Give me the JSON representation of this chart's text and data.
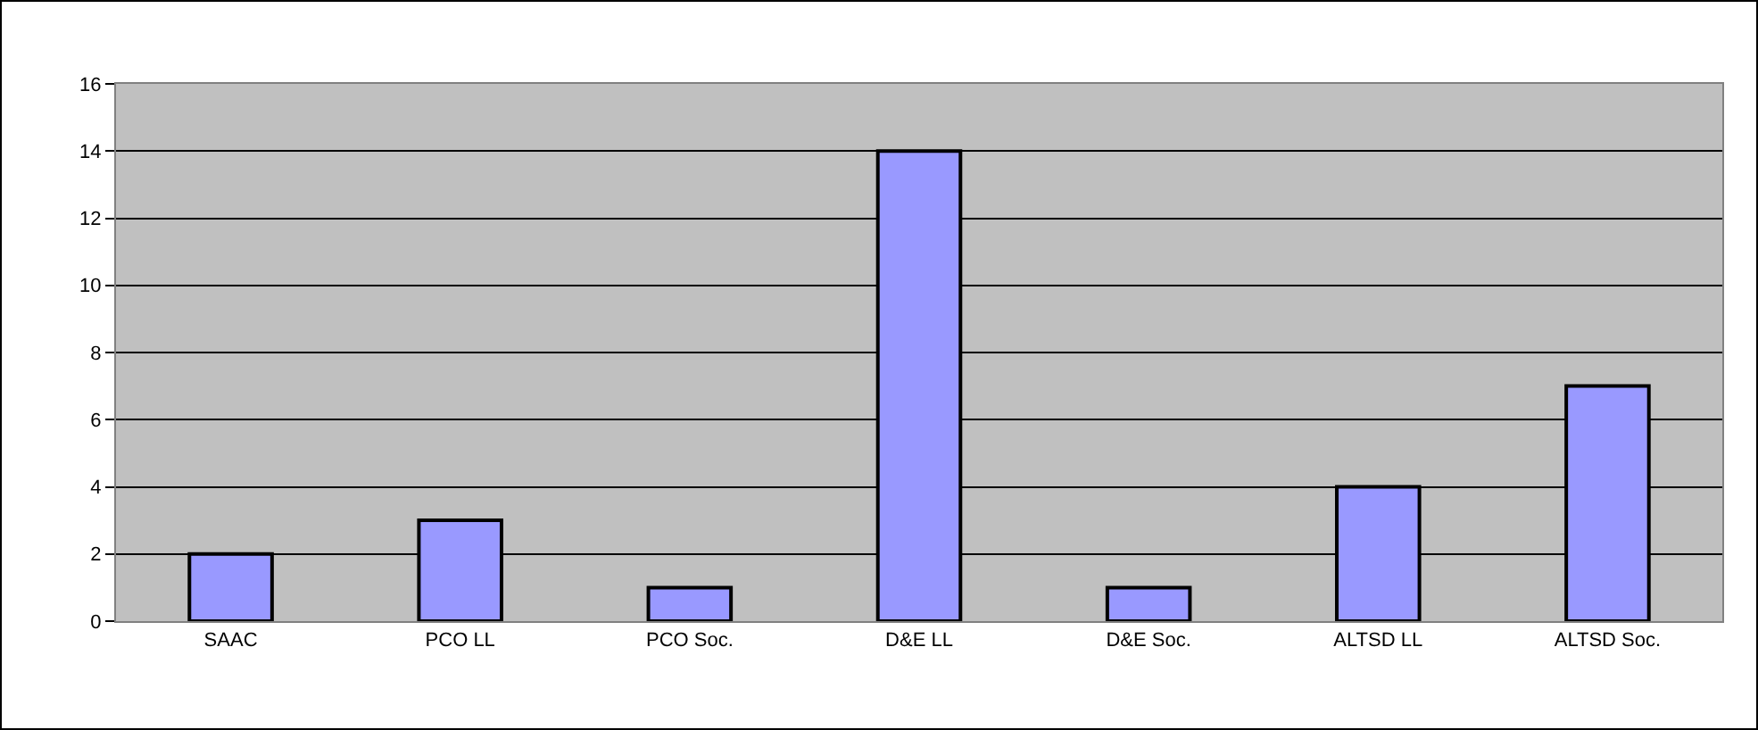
{
  "chart_data": {
    "type": "bar",
    "categories": [
      "SAAC",
      "PCO LL",
      "PCO Soc.",
      "D&E LL",
      "D&E Soc.",
      "ALTSD LL",
      "ALTSD Soc."
    ],
    "values": [
      2,
      3,
      1,
      14,
      1,
      4,
      7
    ],
    "color": "#9999ff",
    "ylim": [
      0,
      16
    ],
    "yticks": [
      0,
      2,
      4,
      6,
      8,
      10,
      12,
      14,
      16
    ],
    "grid": "y"
  }
}
